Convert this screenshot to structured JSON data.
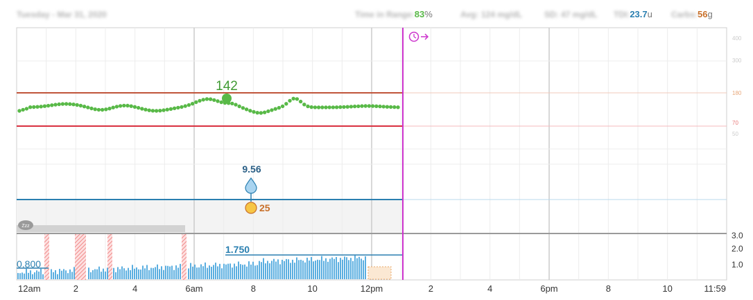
{
  "header": {
    "date_label": "Tuesday - Mar 31, 2020",
    "tir_label": "Time in Range:",
    "tir_value": "83",
    "tir_unit": "%",
    "avg_label": "Avg:",
    "avg_value": "124 mg/dL",
    "sd_label": "SD: 47 mg/dL",
    "tdi_label": "TDI:",
    "tdi_value": "23.7",
    "tdi_unit": "u",
    "carbs_label": "Carbs:",
    "carbs_value": "56",
    "carbs_unit": "g"
  },
  "cgm": {
    "peak_label": "142",
    "high_label": "180",
    "low_label": "70"
  },
  "bolus": {
    "amount_label": "9.56"
  },
  "carb_entry": {
    "amount_label": "25"
  },
  "basal": {
    "start_rate_label": "0.800",
    "peak_rate_label": "1.750",
    "rate_ticks": [
      "3.0",
      "2.0",
      "1.0"
    ]
  },
  "sleep": {
    "icon_label": "Zzz"
  },
  "xaxis": {
    "labels": [
      "12am",
      "2",
      "4",
      "6am",
      "8",
      "10",
      "12pm",
      "2",
      "4",
      "6pm",
      "8",
      "10",
      "11:59"
    ]
  },
  "colors": {
    "high_line": "#c0543a",
    "low_line": "#d9303f",
    "glucose": "#58b947",
    "insulin": "#2a7fb0",
    "carb": "#c8702a",
    "now_line": "#cc33cc",
    "tir_green": "#58b947",
    "tdi_blue": "#2a7fb0",
    "carb_orange": "#c8702a"
  },
  "icons": {
    "now_icon": "clock-arrow-icon",
    "bolus_icon": "drop-icon",
    "carb_icon": "apple-icon",
    "sleep_icon": "sleep-cloud-icon"
  }
}
